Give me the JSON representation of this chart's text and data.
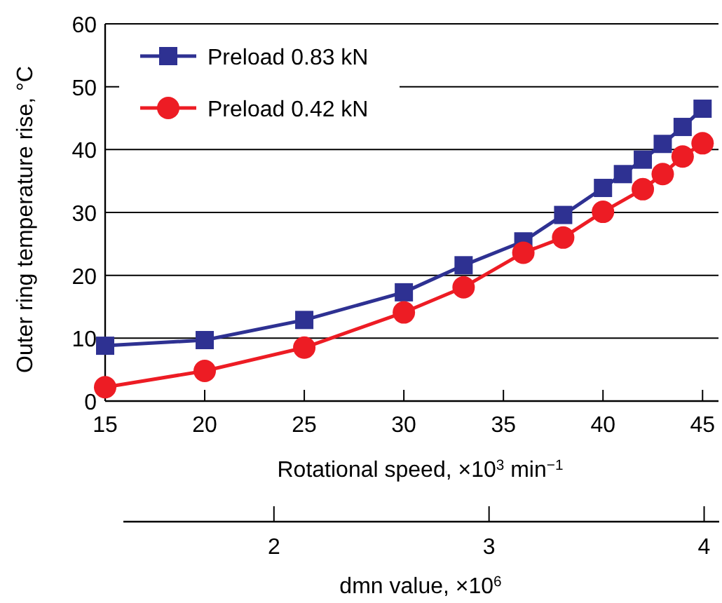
{
  "chart_data": {
    "type": "line",
    "xlabel": "Rotational speed, ×10$^{3}$ min$^{−1}$",
    "ylabel": "Outer ring temperature rise, °C",
    "x2label": "dmn value, ×10$^{6}$",
    "xlim": [
      15,
      45.8
    ],
    "xticks": [
      15,
      20,
      25,
      30,
      35,
      40,
      45
    ],
    "ylim": [
      0,
      60
    ],
    "yticks": [
      0,
      10,
      20,
      30,
      40,
      50,
      60
    ],
    "x2lim": [
      1.3,
      4.07
    ],
    "x2ticks": [
      2,
      3,
      4
    ],
    "grid": "y",
    "legend": "top left",
    "line_style": "solid",
    "series": [
      {
        "name": "Preload 0.83 kN",
        "color": "#2e3192",
        "marker": "square",
        "x": [
          15,
          20,
          25,
          30,
          33,
          36,
          38,
          40,
          41,
          42,
          43,
          44,
          45
        ],
        "values": [
          8.8,
          9.7,
          12.9,
          17.3,
          21.6,
          25.4,
          29.6,
          33.9,
          36.1,
          38.4,
          40.9,
          43.6,
          46.5
        ]
      },
      {
        "name": "Preload 0.42 kN",
        "color": "#ed1c24",
        "marker": "circle",
        "x": [
          15,
          20,
          25,
          30,
          33,
          36,
          38,
          40,
          42,
          43,
          44,
          45
        ],
        "values": [
          2.2,
          4.8,
          8.5,
          14.1,
          18.1,
          23.6,
          26.0,
          30.1,
          33.7,
          36.1,
          38.9,
          41.0
        ]
      }
    ]
  }
}
